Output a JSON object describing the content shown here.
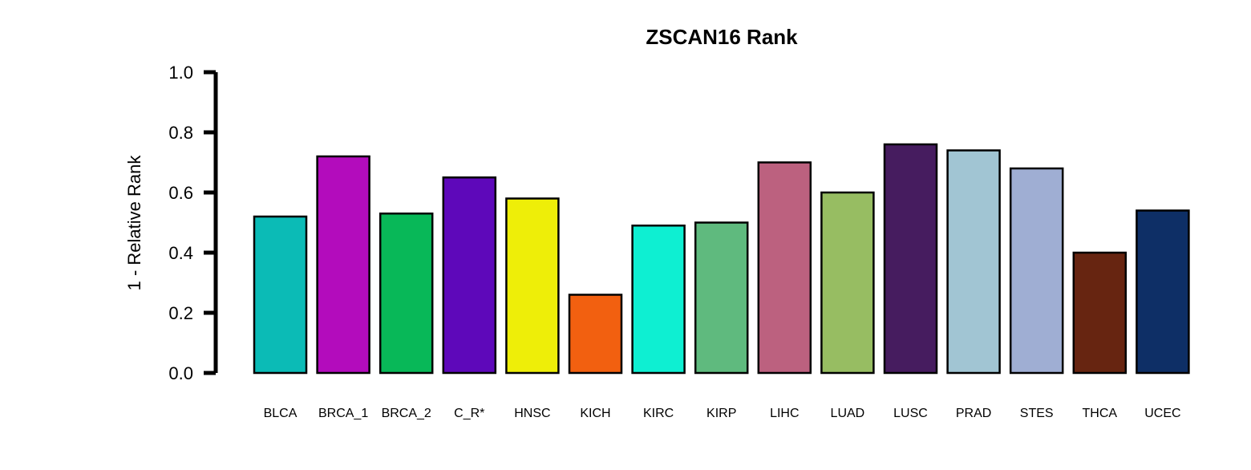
{
  "chart_data": {
    "type": "bar",
    "title": "ZSCAN16 Rank",
    "ylabel": "1 - Relative Rank",
    "xlabel": "",
    "ylim": [
      0,
      1
    ],
    "yticks": [
      "0.0",
      "0.2",
      "0.4",
      "0.6",
      "0.8",
      "1.0"
    ],
    "grid": false,
    "categories": [
      "BLCA",
      "BRCA_1",
      "BRCA_2",
      "C_R*",
      "HNSC",
      "KICH",
      "KIRC",
      "KIRP",
      "LIHC",
      "LUAD",
      "LUSC",
      "PRAD",
      "STES",
      "THCA",
      "UCEC"
    ],
    "values": [
      0.52,
      0.72,
      0.53,
      0.65,
      0.58,
      0.26,
      0.49,
      0.5,
      0.7,
      0.6,
      0.76,
      0.74,
      0.68,
      0.4,
      0.54
    ],
    "colors": [
      "#0BBBB6",
      "#B30CBC",
      "#08B858",
      "#5E08BA",
      "#EEEE08",
      "#F26010",
      "#0EEFD2",
      "#5FBA7E",
      "#BC617F",
      "#97BD62",
      "#461C5F",
      "#A1C5D3",
      "#9FAED3",
      "#672511",
      "#0E2F66"
    ]
  }
}
